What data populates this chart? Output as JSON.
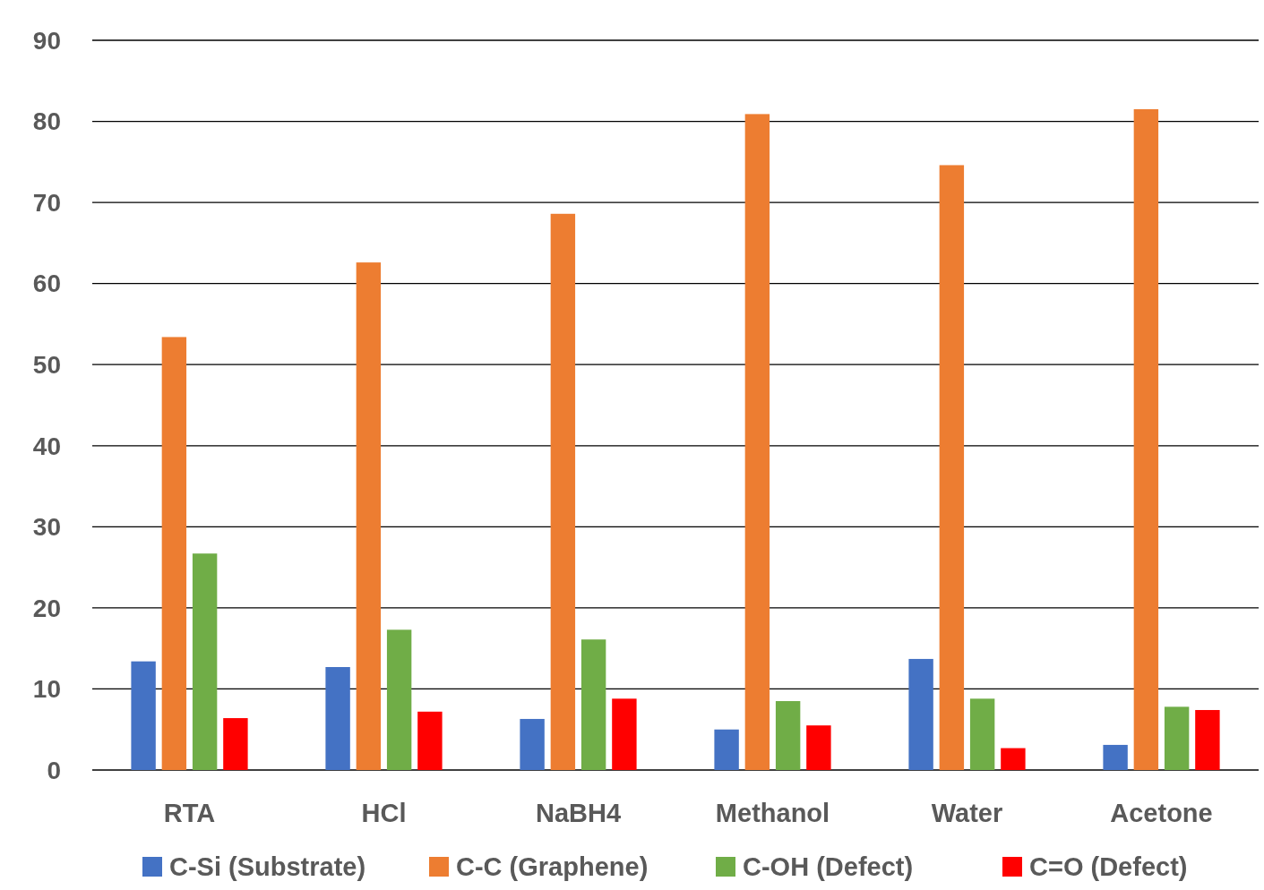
{
  "chart_data": {
    "type": "bar",
    "categories": [
      "RTA",
      "HCl",
      "NaBH4",
      "Methanol",
      "Water",
      "Acetone"
    ],
    "series": [
      {
        "name": "C-Si (Substrate)",
        "color": "#4472c4",
        "values": [
          13.4,
          12.7,
          6.3,
          5.0,
          13.7,
          3.1
        ]
      },
      {
        "name": "C-C (Graphene)",
        "color": "#ed7d31",
        "values": [
          53.4,
          62.6,
          68.6,
          80.9,
          74.6,
          81.5
        ]
      },
      {
        "name": "C-OH (Defect)",
        "color": "#70ad47",
        "values": [
          26.7,
          17.3,
          16.1,
          8.5,
          8.8,
          7.8
        ]
      },
      {
        "name": "C=O (Defect)",
        "color": "#ff0000",
        "values": [
          6.4,
          7.2,
          8.8,
          5.5,
          2.7,
          7.4
        ]
      }
    ],
    "ylim": [
      0,
      90
    ],
    "yticks": [
      0,
      10,
      20,
      30,
      40,
      50,
      60,
      70,
      80,
      90
    ],
    "grid": "y",
    "legend": "bottom"
  }
}
